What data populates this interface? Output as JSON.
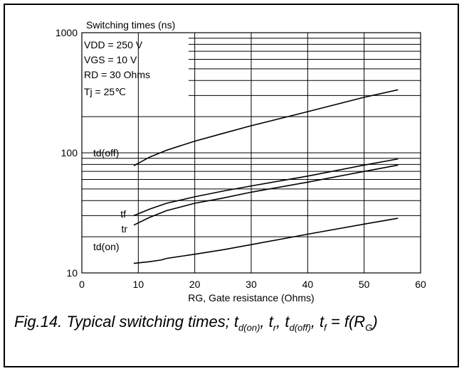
{
  "chart_data": {
    "type": "line",
    "title": "Switching times (ns)",
    "xlabel": "RG, Gate resistance (Ohms)",
    "ylabel": "Switching times (ns)",
    "x_scale": "linear",
    "y_scale": "log",
    "xlim": [
      0,
      60
    ],
    "ylim": [
      10,
      1000
    ],
    "x_ticks": [
      0,
      10,
      20,
      30,
      40,
      50,
      60
    ],
    "y_ticks": [
      10,
      100,
      1000
    ],
    "y_tick_labels": [
      "10",
      "100",
      "1000"
    ],
    "grid": true,
    "conditions": [
      "VDD = 250 V",
      "VGS = 10 V",
      "RD = 30 Ohms",
      "Tj = 25℃"
    ],
    "series": [
      {
        "name": "td(off)",
        "x": [
          9.2,
          12,
          15,
          20,
          25,
          30,
          40,
          50,
          56
        ],
        "y": [
          78,
          92,
          105,
          125,
          145,
          168,
          220,
          290,
          335
        ]
      },
      {
        "name": "tf",
        "x": [
          9.2,
          12,
          15,
          20,
          25,
          30,
          40,
          50,
          56
        ],
        "y": [
          30,
          34,
          38,
          43,
          48,
          53,
          64,
          79,
          89
        ]
      },
      {
        "name": "tr",
        "x": [
          9.2,
          12,
          15,
          20,
          25,
          30,
          40,
          50,
          56
        ],
        "y": [
          25,
          29,
          33,
          38,
          42,
          47,
          57,
          70,
          79
        ]
      },
      {
        "name": "td(on)",
        "x": [
          9.2,
          12,
          14,
          15,
          20,
          25,
          30,
          40,
          50,
          56
        ],
        "y": [
          12,
          12.4,
          12.8,
          13.2,
          14.3,
          15.6,
          17.2,
          21,
          25.5,
          28.5
        ]
      }
    ]
  },
  "caption": {
    "prefix": "Fig.14.  Typical switching times; ",
    "t": "t",
    "s1": "d(on)",
    "s2": "r",
    "s3": "d(off)",
    "s4": "f",
    "f": " = f(R",
    "g": "G",
    "end": ")"
  }
}
